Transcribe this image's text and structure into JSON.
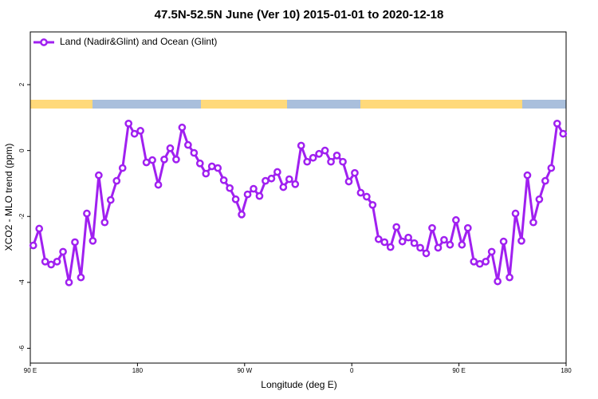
{
  "chart_data": {
    "type": "line",
    "title": "47.5N-52.5N June (Ver 10)   2015-01-01 to 2020-12-18",
    "x_label": "Longitude (deg E)",
    "y_label": "XCO2 - MLO trend (ppm)",
    "legend": "top-left",
    "x": [
      92.5,
      97.5,
      102.5,
      107.5,
      112.5,
      117.5,
      122.5,
      127.5,
      132.5,
      137.5,
      142.5,
      147.5,
      152.5,
      157.5,
      162.5,
      167.5,
      172.5,
      177.5,
      182.5,
      187.5,
      192.5,
      197.5,
      202.5,
      207.5,
      212.5,
      217.5,
      222.5,
      227.5,
      232.5,
      237.5,
      242.5,
      247.5,
      252.5,
      257.5,
      262.5,
      267.5,
      272.5,
      277.5,
      282.5,
      287.5,
      292.5,
      297.5,
      302.5,
      307.5,
      312.5,
      317.5,
      322.5,
      327.5,
      332.5,
      337.5,
      342.5,
      347.5,
      352.5,
      357.5,
      362.5,
      367.5,
      372.5,
      377.5,
      382.5,
      387.5,
      392.5,
      397.5,
      402.5,
      407.5,
      412.5,
      417.5,
      422.5,
      427.5,
      432.5,
      437.5,
      442.5,
      447.5,
      452.5,
      457.5,
      462.5,
      467.5,
      472.5,
      477.5,
      482.5,
      487.5,
      492.5,
      497.5,
      502.5,
      507.5,
      512.5,
      517.5,
      522.5,
      527.5,
      532.5,
      537.5
    ],
    "series": [
      {
        "name": "Land (Nadir&Glint) and Ocean (Glint)",
        "color": "#a020f0",
        "values": [
          -2.88,
          -2.37,
          -3.37,
          -3.46,
          -3.37,
          -3.07,
          -4.0,
          -2.78,
          -3.85,
          -1.91,
          -2.74,
          -0.75,
          -2.18,
          -1.5,
          -0.92,
          -0.53,
          0.82,
          0.51,
          0.6,
          -0.36,
          -0.29,
          -1.04,
          -0.27,
          0.07,
          -0.27,
          0.7,
          0.17,
          -0.07,
          -0.39,
          -0.7,
          -0.48,
          -0.53,
          -0.9,
          -1.14,
          -1.48,
          -1.94,
          -1.33,
          -1.16,
          -1.38,
          -0.92,
          -0.85,
          -0.65,
          -1.11,
          -0.87,
          -1.02,
          0.15,
          -0.34,
          -0.22,
          -0.1,
          0.0,
          -0.34,
          -0.15,
          -0.34,
          -0.94,
          -0.68,
          -1.28,
          -1.4,
          -1.65,
          -2.69,
          -2.78,
          -2.93,
          -2.32,
          -2.76,
          -2.64,
          -2.81,
          -2.95,
          -3.12,
          -2.35,
          -2.95,
          -2.71,
          -2.86,
          -2.11,
          -2.86,
          -2.35,
          -3.37,
          -3.44,
          -3.37,
          -3.07,
          -3.97,
          -2.76,
          -3.85,
          -1.91,
          -2.74,
          -0.75,
          -2.18,
          -1.48,
          -0.92,
          -0.53,
          0.82,
          0.51
        ]
      }
    ],
    "xlim": [
      90,
      540
    ],
    "xticks": [
      {
        "value": 90,
        "label": "90 E"
      },
      180,
      {
        "value": 270,
        "label": "90 W"
      },
      {
        "value": 360,
        "label": "0"
      },
      {
        "value": 450,
        "label": "90 E"
      },
      {
        "value": 540,
        "label": "180"
      }
    ],
    "ylim": [
      -6.45,
      3.6
    ],
    "yticks": [
      -6,
      -4,
      -2,
      0,
      2
    ]
  }
}
